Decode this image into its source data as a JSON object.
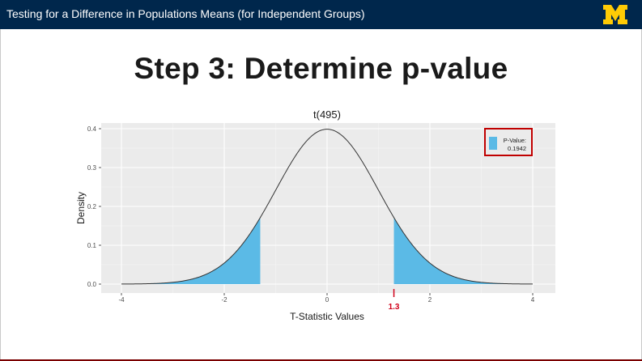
{
  "header": {
    "title": "Testing for a Difference in Populations Means (for Independent Groups)",
    "background": "#00274c",
    "logo_color": "#ffcb05"
  },
  "slide": {
    "title": "Step 3: Determine p-value"
  },
  "chart_data": {
    "type": "area",
    "title": "t(495)",
    "xlabel": "T-Statistic Values",
    "ylabel": "Density",
    "xlim": [
      -4,
      4
    ],
    "ylim": [
      0,
      0.4
    ],
    "x_ticks": [
      "-4",
      "-2",
      "0",
      "2",
      "4"
    ],
    "y_ticks": [
      "0.0",
      "0.1",
      "0.2",
      "0.3",
      "0.4"
    ],
    "grid": true,
    "distribution": {
      "kind": "t",
      "df": 495
    },
    "shaded_regions": [
      {
        "from": -4,
        "to": -1.3
      },
      {
        "from": 1.3,
        "to": 4
      }
    ],
    "critical_value": {
      "x": 1.3,
      "label": "1.3",
      "color": "#d0021b"
    },
    "legend": {
      "position": "top-right",
      "label_line1": "P-Value:",
      "label_line2": "0.1942",
      "border_color": "#c00000"
    },
    "colors": {
      "fill": "#5bbae6",
      "curve": "#333333",
      "panel": "#ebebeb",
      "grid": "#ffffff"
    }
  }
}
